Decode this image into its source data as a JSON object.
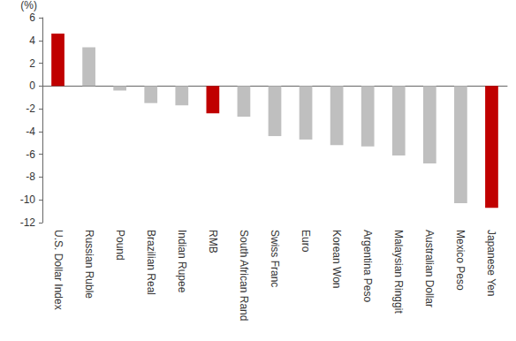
{
  "chart_data": {
    "type": "bar",
    "y_label": "(%)",
    "categories": [
      "U.S. Dollar Index",
      "Russian Ruble",
      "Pound",
      "Brazilian Real",
      "Indian Rupee",
      "RMB",
      "South African Rand",
      "Swiss Franc",
      "Euro",
      "Korean Won",
      "Argentina Peso",
      "Malaysian Ringgit",
      "Australian Dollar",
      "Mexico Peso",
      "Japanese Yen"
    ],
    "values": [
      4.6,
      3.4,
      -0.4,
      -1.5,
      -1.7,
      -2.4,
      -2.7,
      -4.4,
      -4.7,
      -5.2,
      -5.3,
      -6.1,
      -6.8,
      -10.3,
      -10.7
    ],
    "colors": [
      "#c00000",
      "#bfbfbf",
      "#bfbfbf",
      "#bfbfbf",
      "#bfbfbf",
      "#c00000",
      "#bfbfbf",
      "#bfbfbf",
      "#bfbfbf",
      "#bfbfbf",
      "#bfbfbf",
      "#bfbfbf",
      "#bfbfbf",
      "#bfbfbf",
      "#c00000"
    ],
    "ylim": [
      -12,
      6
    ],
    "yticks": [
      -12,
      -10,
      -8,
      -6,
      -4,
      -2,
      0,
      2,
      4,
      6
    ],
    "grid": false
  }
}
